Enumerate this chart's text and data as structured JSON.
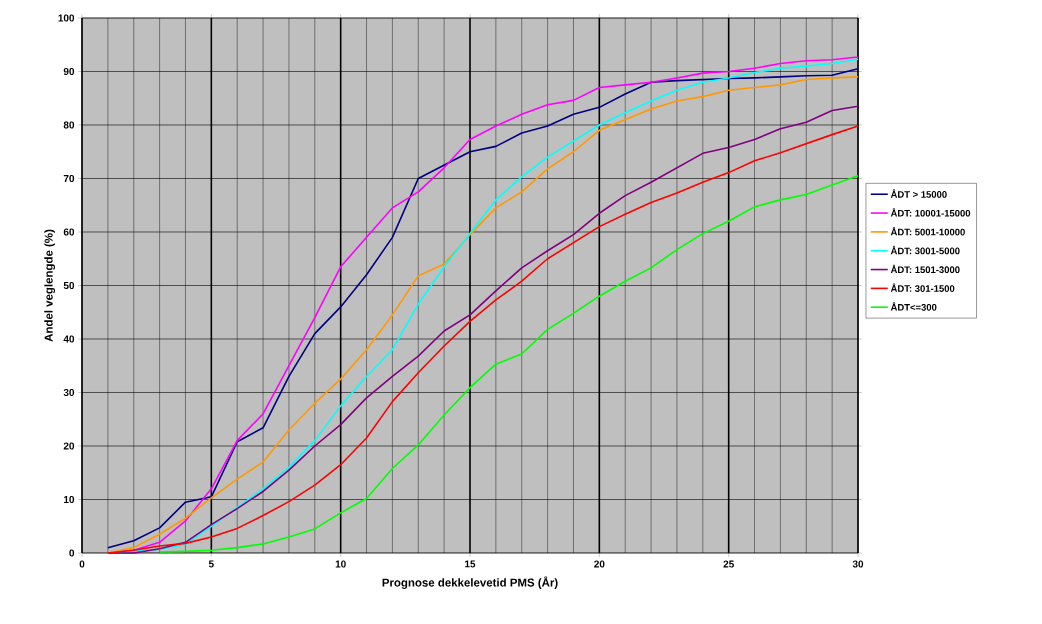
{
  "chart_data": {
    "type": "line",
    "xlabel": "Prognose dekkelevetid PMS  (År)",
    "ylabel": "Andel veglengde (%)",
    "x": [
      1,
      2,
      3,
      4,
      5,
      6,
      7,
      8,
      9,
      10,
      11,
      12,
      13,
      14,
      15,
      16,
      17,
      18,
      19,
      20,
      21,
      22,
      23,
      24,
      25,
      26,
      27,
      28,
      29,
      30
    ],
    "series": [
      {
        "name": "ÅDT > 15000",
        "color": "#000080",
        "values": [
          1,
          2.3,
          4.7,
          9.5,
          10.5,
          20.8,
          23.4,
          33,
          41,
          46,
          52,
          59,
          70,
          72.5,
          75,
          76,
          78.5,
          79.8,
          82,
          83.3,
          85.8,
          88,
          88.3,
          88.5,
          88.7,
          88.8,
          89,
          89.2,
          89.3,
          90.5
        ]
      },
      {
        "name": "ÅDT: 10001-15000",
        "color": "#ff00ff",
        "values": [
          0,
          0.5,
          2,
          6,
          12,
          21,
          26,
          35,
          44,
          53.5,
          59,
          64.5,
          67.5,
          72,
          77.3,
          79.8,
          82,
          83.8,
          84.6,
          87,
          87.5,
          88,
          88.8,
          89.7,
          90,
          90.6,
          91.5,
          92,
          92.2,
          92.7
        ]
      },
      {
        "name": "ÅDT: 5001-10000",
        "color": "#ff9900",
        "values": [
          0,
          1,
          3.5,
          6.5,
          10.3,
          13.8,
          17,
          23,
          28,
          32.5,
          38,
          44.5,
          51.8,
          54,
          59.5,
          64.5,
          67.5,
          71.8,
          75,
          79,
          81,
          83,
          84.5,
          85.3,
          86.5,
          87,
          87.5,
          88.5,
          88.8,
          89
        ]
      },
      {
        "name": "ÅDT: 3001-5000",
        "color": "#00ffff",
        "values": [
          0,
          0.3,
          0.7,
          1.6,
          5,
          8.5,
          12,
          16,
          21,
          27.5,
          33,
          38,
          46.5,
          53.5,
          59.7,
          66,
          70.3,
          74,
          77,
          80,
          82.3,
          84.5,
          86.5,
          88,
          88.8,
          89.8,
          90.6,
          91,
          91.5,
          92.3
        ]
      },
      {
        "name": "ÅDT: 1501-3000",
        "color": "#800080",
        "values": [
          0,
          0,
          0.8,
          2,
          5.3,
          8.3,
          11.5,
          15.5,
          20,
          24,
          29,
          33,
          36.8,
          41.5,
          44.5,
          49,
          53.3,
          56.5,
          59.5,
          63.5,
          66.8,
          69.3,
          72,
          74.7,
          75.8,
          77.3,
          79.3,
          80.5,
          82.7,
          83.5
        ]
      },
      {
        "name": "ÅDT: 301-1500",
        "color": "#ff0000",
        "values": [
          0,
          0.5,
          1.3,
          1.8,
          3,
          4.6,
          7,
          9.6,
          12.7,
          16.5,
          21.5,
          28.3,
          33.7,
          38.7,
          43.3,
          47.3,
          50.8,
          55,
          58,
          61,
          63.3,
          65.5,
          67.3,
          69.3,
          71.1,
          73.3,
          74.8,
          76.5,
          78.2,
          79.8
        ]
      },
      {
        "name": "ÅDT<=300",
        "color": "#00ff00",
        "values": [
          null,
          null,
          0.2,
          0.3,
          0.5,
          1,
          1.7,
          3,
          4.5,
          7.5,
          10.2,
          15.8,
          20.2,
          25.8,
          30.9,
          35.3,
          37.2,
          41.8,
          44.8,
          48,
          50.8,
          53.3,
          56.7,
          59.7,
          62,
          64.7,
          66,
          67,
          68.8,
          70.5
        ]
      }
    ],
    "xlim": [
      0,
      30
    ],
    "xticks": [
      0,
      5,
      10,
      15,
      20,
      25,
      30
    ],
    "ylim": [
      0,
      100
    ],
    "yticks": [
      0,
      10,
      20,
      30,
      40,
      50,
      60,
      70,
      80,
      90,
      100
    ],
    "grid": true,
    "legend": "right",
    "line_style": "solid"
  }
}
